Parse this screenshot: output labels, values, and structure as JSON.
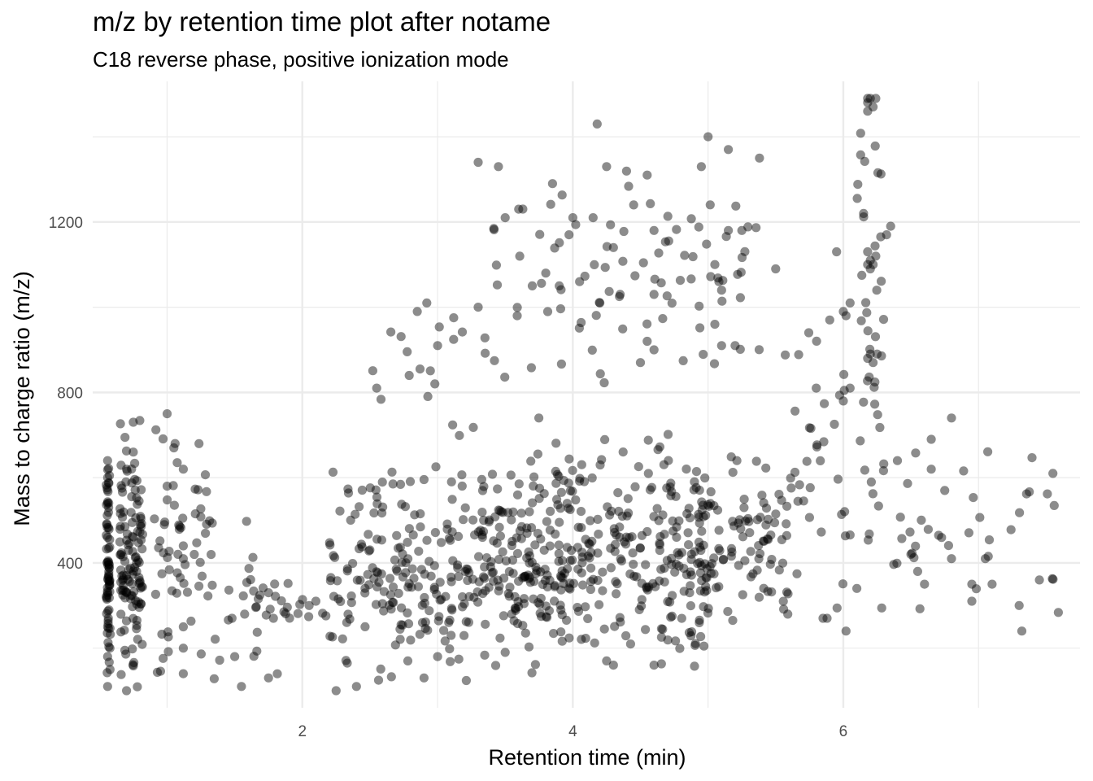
{
  "chart_data": {
    "type": "scatter",
    "title": "m/z by retention time plot after notame",
    "subtitle": "C18 reverse phase, positive ionization mode",
    "xlabel": "Retention time (min)",
    "ylabel": "Mass to charge ratio (m/z)",
    "xlim": [
      0.45,
      7.75
    ],
    "ylim": [
      60,
      1530
    ],
    "x_ticks": [
      2,
      4,
      6
    ],
    "y_ticks": [
      400,
      800,
      1200
    ],
    "x_minor_gridlines": [
      1,
      3,
      5,
      7
    ],
    "y_minor_gridlines": [
      200,
      600,
      1000,
      1400
    ],
    "grid": true,
    "point_color": "#000000",
    "point_opacity": 0.45,
    "cluster_seeds": [
      {
        "x": [
          0.55,
          0.58
        ],
        "y": [
          100,
          650
        ],
        "n": 70
      },
      {
        "x": [
          0.65,
          0.82
        ],
        "y": [
          100,
          740
        ],
        "n": 120
      },
      {
        "x": [
          0.9,
          1.35
        ],
        "y": [
          100,
          760
        ],
        "n": 60
      },
      {
        "x": [
          1.35,
          1.9
        ],
        "y": [
          100,
          520
        ],
        "n": 30
      },
      {
        "x": [
          1.85,
          2.25
        ],
        "y": [
          230,
          320
        ],
        "n": 8
      },
      {
        "x": [
          2.2,
          3.3
        ],
        "y": [
          100,
          650
        ],
        "n": 190
      },
      {
        "x": [
          2.5,
          3.3
        ],
        "y": [
          650,
          1020
        ],
        "n": 16
      },
      {
        "x": [
          3.3,
          4.0
        ],
        "y": [
          130,
          700
        ],
        "n": 190
      },
      {
        "x": [
          3.3,
          4.3
        ],
        "y": [
          700,
          1350
        ],
        "n": 38
      },
      {
        "x": [
          4.0,
          5.0
        ],
        "y": [
          140,
          720
        ],
        "n": 210
      },
      {
        "x": [
          4.2,
          5.4
        ],
        "y": [
          800,
          1400
        ],
        "n": 50
      },
      {
        "x": [
          4.9,
          5.6
        ],
        "y": [
          240,
          700
        ],
        "n": 90
      },
      {
        "x": [
          5.5,
          6.1
        ],
        "y": [
          240,
          1050
        ],
        "n": 38
      },
      {
        "x": [
          6.1,
          6.3
        ],
        "y": [
          250,
          1500
        ],
        "n": 40
      },
      {
        "x": [
          6.3,
          7.6
        ],
        "y": [
          230,
          750
        ],
        "n": 34
      }
    ],
    "points": [
      [
        0.56,
        110
      ],
      [
        0.56,
        640
      ],
      [
        0.56,
        600
      ],
      [
        0.56,
        540
      ],
      [
        0.56,
        460
      ],
      [
        0.56,
        330
      ],
      [
        0.56,
        250
      ],
      [
        0.56,
        180
      ],
      [
        0.7,
        100
      ],
      [
        0.7,
        620
      ],
      [
        0.7,
        370
      ],
      [
        0.7,
        330
      ],
      [
        0.75,
        730
      ],
      [
        0.75,
        660
      ],
      [
        1.0,
        750
      ],
      [
        1.0,
        580
      ],
      [
        0.98,
        490
      ],
      [
        1.12,
        620
      ],
      [
        1.12,
        440
      ],
      [
        1.12,
        410
      ],
      [
        1.12,
        250
      ],
      [
        1.12,
        200
      ],
      [
        1.12,
        140
      ],
      [
        1.55,
        110
      ],
      [
        1.75,
        130
      ],
      [
        1.75,
        330
      ],
      [
        1.5,
        180
      ],
      [
        1.48,
        270
      ],
      [
        1.05,
        670
      ],
      [
        2.05,
        300
      ],
      [
        2.1,
        310
      ],
      [
        2.55,
        810
      ],
      [
        2.85,
        990
      ],
      [
        2.92,
        1010
      ],
      [
        2.98,
        820
      ],
      [
        3.0,
        910
      ],
      [
        3.3,
        1340
      ],
      [
        3.3,
        1000
      ],
      [
        3.45,
        1330
      ],
      [
        3.5,
        1210
      ],
      [
        3.6,
        1230
      ],
      [
        3.7,
        1050
      ],
      [
        3.8,
        1080
      ],
      [
        3.85,
        1290
      ],
      [
        3.9,
        1050
      ],
      [
        4.0,
        1210
      ],
      [
        4.05,
        1060
      ],
      [
        4.15,
        1210
      ],
      [
        4.18,
        1430
      ],
      [
        4.2,
        1010
      ],
      [
        4.25,
        1330
      ],
      [
        4.3,
        1140
      ],
      [
        4.35,
        1030
      ],
      [
        4.45,
        1240
      ],
      [
        4.55,
        1310
      ],
      [
        4.6,
        1180
      ],
      [
        4.6,
        1030
      ],
      [
        4.55,
        920
      ],
      [
        4.6,
        900
      ],
      [
        4.5,
        870
      ],
      [
        5.0,
        1400
      ],
      [
        4.95,
        1330
      ],
      [
        5.15,
        1370
      ],
      [
        5.38,
        1350
      ],
      [
        5.05,
        1100
      ],
      [
        5.08,
        1060
      ],
      [
        5.1,
        1040
      ],
      [
        5.05,
        960
      ],
      [
        5.1,
        910
      ],
      [
        5.2,
        910
      ],
      [
        5.25,
        1180
      ],
      [
        5.5,
        1090
      ],
      [
        5.8,
        810
      ],
      [
        5.9,
        970
      ],
      [
        5.95,
        1130
      ],
      [
        6.0,
        990
      ],
      [
        6.02,
        980
      ],
      [
        6.05,
        1010
      ],
      [
        6.05,
        810
      ],
      [
        6.0,
        780
      ],
      [
        6.18,
        1490
      ],
      [
        6.18,
        1480
      ],
      [
        6.2,
        1490
      ],
      [
        6.22,
        1470
      ],
      [
        6.24,
        1490
      ],
      [
        6.18,
        1460
      ],
      [
        6.15,
        1220
      ],
      [
        6.18,
        1130
      ],
      [
        6.2,
        1110
      ],
      [
        6.22,
        1100
      ],
      [
        6.24,
        1120
      ],
      [
        6.18,
        1100
      ],
      [
        6.2,
        1090
      ],
      [
        6.32,
        1170
      ],
      [
        6.35,
        1190
      ],
      [
        6.2,
        890
      ],
      [
        6.18,
        880
      ],
      [
        6.22,
        870
      ],
      [
        6.25,
        890
      ],
      [
        6.4,
        640
      ],
      [
        6.5,
        420
      ],
      [
        6.55,
        380
      ],
      [
        6.6,
        350
      ],
      [
        6.65,
        690
      ],
      [
        6.65,
        620
      ],
      [
        6.75,
        570
      ],
      [
        6.8,
        740
      ],
      [
        6.8,
        410
      ],
      [
        6.95,
        350
      ],
      [
        6.95,
        310
      ],
      [
        7.05,
        410
      ],
      [
        7.1,
        350
      ],
      [
        7.3,
        300
      ],
      [
        7.32,
        240
      ],
      [
        7.45,
        360
      ],
      [
        7.55,
        610
      ],
      [
        5.85,
        270
      ],
      [
        5.88,
        270
      ],
      [
        6.02,
        240
      ],
      [
        6.1,
        340
      ],
      [
        4.25,
        170
      ],
      [
        4.3,
        160
      ],
      [
        4.6,
        160
      ],
      [
        3.0,
        180
      ],
      [
        2.78,
        170
      ],
      [
        2.4,
        110
      ],
      [
        2.25,
        100
      ],
      [
        2.9,
        130
      ],
      [
        3.5,
        190
      ],
      [
        3.1,
        230
      ]
    ]
  }
}
